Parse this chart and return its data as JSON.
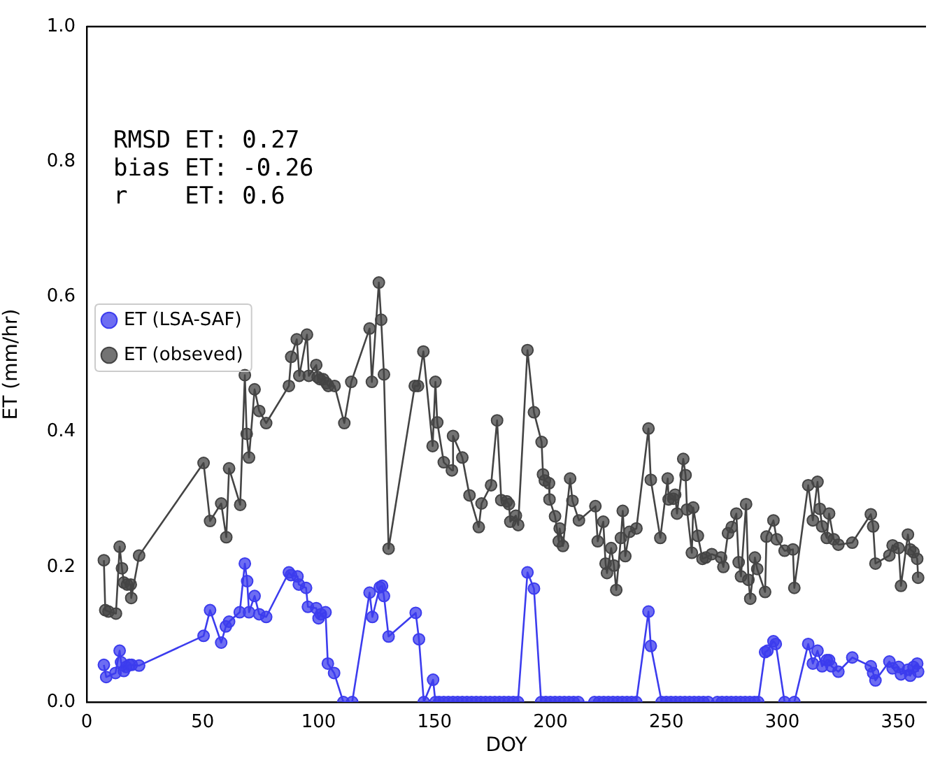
{
  "chart_data": {
    "type": "line",
    "xlabel": "DOY",
    "ylabel": "ET (mm/hr)",
    "xlim": [
      0,
      362
    ],
    "xticks": [
      0,
      50,
      100,
      150,
      200,
      250,
      300,
      350
    ],
    "ylim": [
      0,
      1
    ],
    "yticks": [
      {
        "value": 0,
        "label": "0.0"
      },
      0.2,
      0.4,
      0.6,
      0.8,
      {
        "value": 1,
        "label": "1.0"
      }
    ],
    "grid": false,
    "legend": "top",
    "marker": "circle",
    "line_style": "solid",
    "annotations": [
      "RMSD ET: 0.27",
      "bias ET: -0.26",
      "r    ET: 0.6"
    ],
    "series": [
      {
        "name": "ET (LSA-SAF)",
        "color": "#3c3cee",
        "x": [
          7.4,
          8.4,
          12.4,
          14.2,
          14.8,
          16,
          17,
          18.4,
          19.4,
          22.6,
          50.4,
          53.2,
          58,
          60,
          61.4,
          66,
          68.2,
          69.2,
          70,
          72.4,
          74.4,
          77.4,
          87.2,
          88.1,
          90.9,
          91.5,
          94.6,
          95.4,
          99,
          100,
          101,
          103,
          104,
          106.7,
          110.7,
          114.5,
          122,
          123.2,
          126.4,
          127.4,
          128.2,
          130.2,
          141.9,
          143.3,
          145.4,
          149.4,
          150.4,
          152,
          154,
          156,
          158,
          160,
          162,
          164,
          166,
          168,
          170,
          172,
          174,
          176,
          178,
          180,
          182,
          184,
          186,
          190.1,
          192.9,
          196,
          198,
          200,
          202,
          204,
          206,
          208,
          210,
          212,
          219,
          221,
          223,
          225,
          227,
          229,
          231,
          233,
          235,
          237,
          242.3,
          243.3,
          248,
          250,
          252,
          254,
          256,
          258,
          260,
          262,
          264,
          266,
          268,
          272,
          274,
          276,
          278,
          280,
          282,
          284,
          286,
          288,
          289.6,
          292.6,
          293.6,
          296.2,
          297.2,
          301,
          305.2,
          311.2,
          313.2,
          315.2,
          317.2,
          319.2,
          320.2,
          321.2,
          324.2,
          330.2,
          338.2,
          339.2,
          340.2,
          346.2,
          347.6,
          350.2,
          351.2,
          354.2,
          355.2,
          356.6,
          358.2,
          358.6
        ],
        "values": [
          0.055,
          0.037,
          0.043,
          0.076,
          0.059,
          0.046,
          0.052,
          0.055,
          0.055,
          0.054,
          0.098,
          0.136,
          0.088,
          0.112,
          0.119,
          0.133,
          0.205,
          0.179,
          0.133,
          0.157,
          0.13,
          0.126,
          0.192,
          0.188,
          0.186,
          0.174,
          0.169,
          0.141,
          0.139,
          0.124,
          0.13,
          0.133,
          0.057,
          0.043,
          0,
          0,
          0.162,
          0.126,
          0.17,
          0.172,
          0.157,
          0.097,
          0.132,
          0.093,
          0,
          0.033,
          0,
          0,
          0,
          0,
          0,
          0,
          0,
          0,
          0,
          0,
          0,
          0,
          0,
          0,
          0,
          0,
          0,
          0,
          0,
          0.192,
          0.168,
          0,
          0,
          0,
          0,
          0,
          0,
          0,
          0,
          0,
          0,
          0,
          0,
          0,
          0,
          0,
          0,
          0,
          0,
          0,
          0.134,
          0.083,
          0,
          0,
          0,
          0,
          0,
          0,
          0,
          0,
          0,
          0,
          0,
          0,
          0,
          0,
          0,
          0,
          0,
          0,
          0,
          0,
          0,
          0.074,
          0.076,
          0.09,
          0.086,
          0,
          0,
          0.086,
          0.057,
          0.076,
          0.053,
          0.062,
          0.062,
          0.053,
          0.045,
          0.066,
          0.053,
          0.043,
          0.032,
          0.06,
          0.05,
          0.052,
          0.041,
          0.048,
          0.039,
          0.052,
          0.057,
          0.045
        ]
      },
      {
        "name": "ET (obseved)",
        "color": "#444444",
        "x": [
          7.4,
          8,
          9.4,
          12.6,
          14.2,
          15.2,
          16,
          17.4,
          19,
          19.2,
          22.6,
          50.4,
          53.2,
          58,
          60.2,
          61.4,
          66.2,
          68.2,
          69,
          70,
          72.4,
          74.4,
          77.4,
          87.2,
          88.2,
          90.6,
          91.7,
          95,
          95.8,
          99,
          99.6,
          100.6,
          102,
          103.4,
          104.2,
          106.9,
          111.1,
          114.1,
          122,
          123,
          126,
          127,
          128.2,
          130.2,
          141.5,
          142.9,
          145.2,
          149.2,
          150.4,
          151.2,
          154,
          157.5,
          158,
          162,
          165.1,
          169.1,
          170.3,
          174.4,
          177,
          178.8,
          181.2,
          182.1,
          182.7,
          185.1,
          186.1,
          190.1,
          192.9,
          196.2,
          196.8,
          197.6,
          199.4,
          199.6,
          202,
          203.6,
          204,
          205.4,
          208.5,
          209.5,
          212.3,
          219.4,
          220.4,
          222.8,
          223.8,
          224.4,
          226.2,
          227.4,
          228.4,
          230.4,
          231.2,
          232.3,
          234.1,
          237.1,
          242.3,
          243.3,
          247.4,
          250.6,
          251,
          253,
          253.8,
          254.6,
          257.3,
          258.3,
          258.9,
          261,
          261.6,
          263.6,
          265.6,
          267,
          269.6,
          273.6,
          274.6,
          276.6,
          278.2,
          280.2,
          281.2,
          282.2,
          284.4,
          285.4,
          286.2,
          288.2,
          289.2,
          292.6,
          293.2,
          296.2,
          297.6,
          301,
          304.6,
          305.2,
          311.2,
          313.2,
          315.2,
          316.2,
          317.2,
          319.2,
          320.2,
          322.2,
          324.2,
          330.2,
          338.2,
          339.2,
          340.2,
          346.2,
          347.6,
          350.2,
          351.2,
          354.2,
          355.2,
          356.6,
          358.2,
          358.6
        ],
        "values": [
          0.21,
          0.136,
          0.134,
          0.131,
          0.23,
          0.198,
          0.177,
          0.174,
          0.174,
          0.154,
          0.217,
          0.354,
          0.268,
          0.294,
          0.244,
          0.346,
          0.292,
          0.484,
          0.397,
          0.362,
          0.463,
          0.431,
          0.413,
          0.468,
          0.511,
          0.537,
          0.483,
          0.544,
          0.483,
          0.499,
          0.481,
          0.478,
          0.478,
          0.472,
          0.468,
          0.468,
          0.413,
          0.474,
          0.553,
          0.474,
          0.621,
          0.566,
          0.485,
          0.227,
          0.468,
          0.468,
          0.519,
          0.379,
          0.474,
          0.414,
          0.355,
          0.343,
          0.394,
          0.362,
          0.306,
          0.259,
          0.294,
          0.321,
          0.417,
          0.299,
          0.297,
          0.293,
          0.267,
          0.276,
          0.262,
          0.521,
          0.429,
          0.385,
          0.337,
          0.328,
          0.324,
          0.3,
          0.275,
          0.238,
          0.257,
          0.231,
          0.331,
          0.298,
          0.269,
          0.29,
          0.238,
          0.267,
          0.205,
          0.191,
          0.228,
          0.202,
          0.166,
          0.243,
          0.283,
          0.216,
          0.252,
          0.257,
          0.405,
          0.329,
          0.243,
          0.331,
          0.3,
          0.301,
          0.307,
          0.279,
          0.36,
          0.336,
          0.285,
          0.221,
          0.288,
          0.246,
          0.212,
          0.214,
          0.219,
          0.214,
          0.2,
          0.25,
          0.259,
          0.279,
          0.207,
          0.186,
          0.293,
          0.181,
          0.153,
          0.214,
          0.197,
          0.163,
          0.245,
          0.269,
          0.241,
          0.224,
          0.226,
          0.169,
          0.321,
          0.269,
          0.326,
          0.286,
          0.26,
          0.243,
          0.279,
          0.241,
          0.233,
          0.236,
          0.278,
          0.26,
          0.205,
          0.217,
          0.232,
          0.228,
          0.172,
          0.248,
          0.226,
          0.222,
          0.212,
          0.184
        ]
      }
    ]
  }
}
